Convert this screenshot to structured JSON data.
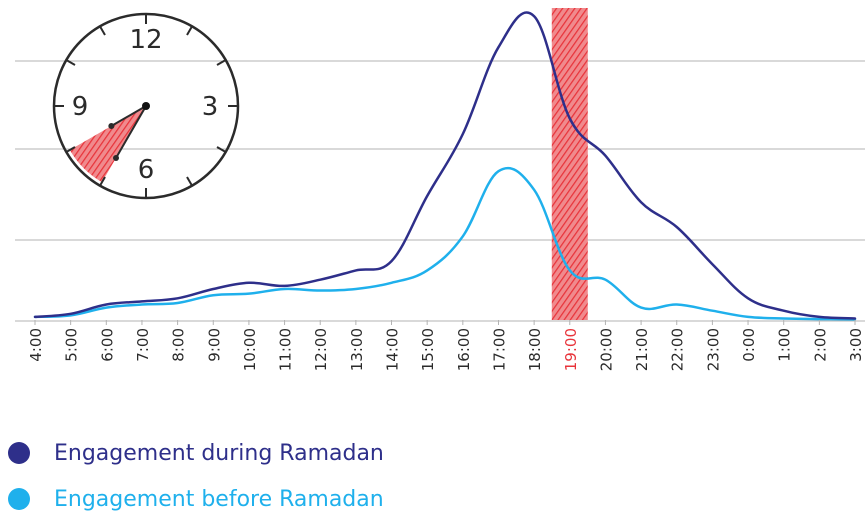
{
  "colors": {
    "during": "#2e2f8a",
    "before": "#1fb0ec",
    "highlight": "#e8333a",
    "grid": "#b3b3b3",
    "text": "#2b2b2b"
  },
  "clock": {
    "numbers": [
      "12",
      "3",
      "6",
      "9"
    ],
    "highlight_from": "7:00",
    "highlight_to": "8:00"
  },
  "legend": [
    {
      "label": "Engagement during Ramadan",
      "color": "#2e2f8a"
    },
    {
      "label": "Engagement before Ramadan",
      "color": "#1fb0ec"
    }
  ],
  "chart_data": {
    "type": "line",
    "categories": [
      "4:00",
      "5:00",
      "6:00",
      "7:00",
      "8:00",
      "9:00",
      "10:00",
      "11:00",
      "12:00",
      "13:00",
      "14:00",
      "15:00",
      "16:00",
      "17:00",
      "18:00",
      "19:00",
      "20:00",
      "21:00",
      "22:00",
      "23:00",
      "0:00",
      "1:00",
      "2:00",
      "3:00"
    ],
    "highlight_category": "19:00",
    "ylim": [
      0,
      100
    ],
    "grid": true,
    "series": [
      {
        "name": "Engagement during Ramadan",
        "color": "#2e2f8a",
        "values": [
          1,
          2,
          5,
          6,
          7,
          10,
          12,
          11,
          13,
          16,
          19,
          40,
          60,
          88,
          98,
          65,
          53,
          38,
          30,
          18,
          7,
          3,
          1,
          0.5
        ]
      },
      {
        "name": "Engagement before Ramadan",
        "color": "#1fb0ec",
        "values": [
          1,
          1.5,
          4,
          5,
          5.5,
          8,
          8.5,
          10,
          9.5,
          10,
          12,
          16,
          27,
          48,
          42,
          16,
          13,
          4,
          5,
          3,
          1,
          0.5,
          0.3,
          0.2
        ]
      }
    ]
  }
}
